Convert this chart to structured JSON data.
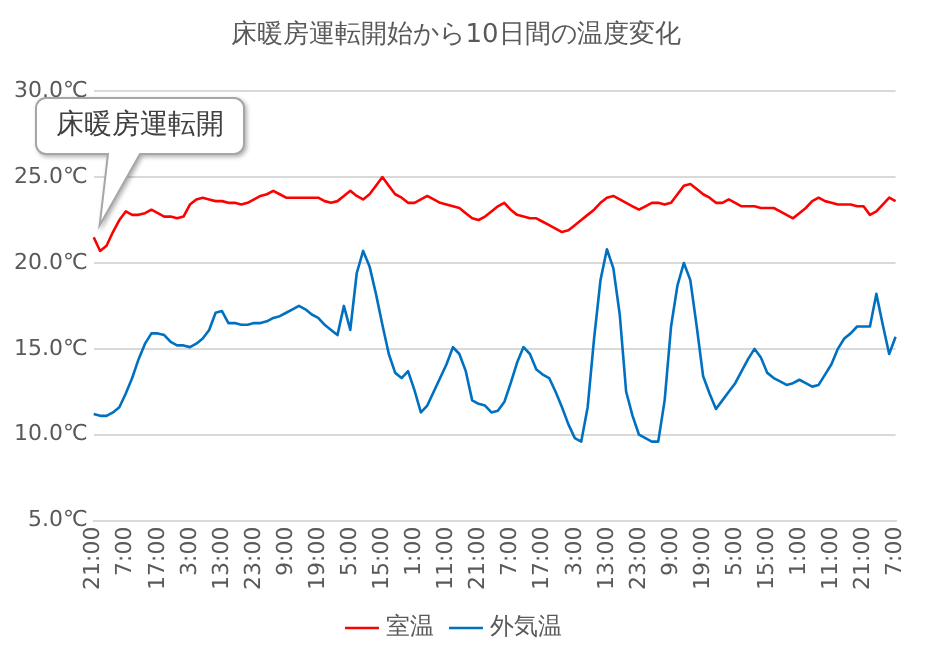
{
  "chart_data": {
    "type": "line",
    "title": "床暖房運転開始から10日間の温度変化",
    "categories": [
      "21:00",
      null,
      null,
      null,
      null,
      "7:00",
      null,
      null,
      null,
      null,
      "17:00",
      null,
      null,
      null,
      null,
      "3:00",
      null,
      null,
      null,
      null,
      "13:00",
      null,
      null,
      null,
      null,
      "23:00",
      null,
      null,
      null,
      null,
      "9:00",
      null,
      null,
      null,
      null,
      "19:00",
      null,
      null,
      null,
      null,
      "5:00",
      null,
      null,
      null,
      null,
      "15:00",
      null,
      null,
      null,
      null,
      "1:00",
      null,
      null,
      null,
      null,
      "11:00",
      null,
      null,
      null,
      null,
      "21:00",
      null,
      null,
      null,
      null,
      "7:00",
      null,
      null,
      null,
      null,
      "17:00",
      null,
      null,
      null,
      null,
      "3:00",
      null,
      null,
      null,
      null,
      "13:00",
      null,
      null,
      null,
      null,
      "23:00",
      null,
      null,
      null,
      null,
      "9:00",
      null,
      null,
      null,
      null,
      "19:00",
      null,
      null,
      null,
      null,
      "5:00",
      null,
      null,
      null,
      null,
      "15:00",
      null,
      null,
      null,
      null,
      "1:00",
      null,
      null,
      null,
      null,
      "11:00",
      null,
      null,
      null,
      null,
      "21:00",
      null,
      null,
      null,
      null,
      "7:00"
    ],
    "ylim": [
      5,
      30
    ],
    "yticks": [
      {
        "value": 5,
        "label": "5.0℃"
      },
      {
        "value": 10,
        "label": "10.0℃"
      },
      {
        "value": 15,
        "label": "15.0℃"
      },
      {
        "value": 20,
        "label": "20.0℃"
      },
      {
        "value": 25,
        "label": "25.0℃"
      },
      {
        "value": 30,
        "label": "30.0℃"
      }
    ],
    "grid": "y",
    "legend": "bottom",
    "marker": "none",
    "line_style": "solid",
    "annotations": [
      "床暖房運転開"
    ],
    "series": [
      {
        "name": "室温",
        "color": "#ff0000",
        "values": [
          21.5,
          20.7,
          21.0,
          21.8,
          22.5,
          23.0,
          22.8,
          22.8,
          22.9,
          23.1,
          22.9,
          22.7,
          22.7,
          22.6,
          22.7,
          23.4,
          23.7,
          23.8,
          23.7,
          23.6,
          23.6,
          23.5,
          23.5,
          23.4,
          23.5,
          23.7,
          23.9,
          24.0,
          24.2,
          24.0,
          23.8,
          23.8,
          23.8,
          23.8,
          23.8,
          23.8,
          23.6,
          23.5,
          23.6,
          23.9,
          24.2,
          23.9,
          23.7,
          24.0,
          24.5,
          25.0,
          24.5,
          24.0,
          23.8,
          23.5,
          23.5,
          23.7,
          23.9,
          23.7,
          23.5,
          23.4,
          23.3,
          23.2,
          22.9,
          22.6,
          22.5,
          22.7,
          23.0,
          23.3,
          23.5,
          23.1,
          22.8,
          22.7,
          22.6,
          22.6,
          22.4,
          22.2,
          22.0,
          21.8,
          21.9,
          22.2,
          22.5,
          22.8,
          23.1,
          23.5,
          23.8,
          23.9,
          23.7,
          23.5,
          23.3,
          23.1,
          23.3,
          23.5,
          23.5,
          23.4,
          23.5,
          24.0,
          24.5,
          24.6,
          24.3,
          24.0,
          23.8,
          23.5,
          23.5,
          23.7,
          23.5,
          23.3,
          23.3,
          23.3,
          23.2,
          23.2,
          23.2,
          23.0,
          22.8,
          22.6,
          22.9,
          23.2,
          23.6,
          23.8,
          23.6,
          23.5,
          23.4,
          23.4,
          23.4,
          23.3,
          23.3,
          22.8,
          23.0,
          23.4,
          23.8,
          23.6
        ]
      },
      {
        "name": "外気温",
        "color": "#0070c0",
        "values": [
          11.2,
          11.1,
          11.1,
          11.3,
          11.6,
          12.4,
          13.3,
          14.4,
          15.3,
          15.9,
          15.9,
          15.8,
          15.4,
          15.2,
          15.2,
          15.1,
          15.3,
          15.6,
          16.1,
          17.1,
          17.2,
          16.5,
          16.5,
          16.4,
          16.4,
          16.5,
          16.5,
          16.6,
          16.8,
          16.9,
          17.1,
          17.3,
          17.5,
          17.3,
          17.0,
          16.8,
          16.4,
          16.1,
          15.8,
          17.5,
          16.1,
          19.4,
          20.7,
          19.8,
          18.2,
          16.4,
          14.7,
          13.6,
          13.3,
          13.7,
          12.6,
          11.3,
          11.7,
          12.5,
          13.3,
          14.1,
          15.1,
          14.7,
          13.7,
          12.0,
          11.8,
          11.7,
          11.3,
          11.4,
          11.9,
          13.0,
          14.2,
          15.1,
          14.7,
          13.8,
          13.5,
          13.3,
          12.5,
          11.6,
          10.6,
          9.8,
          9.6,
          11.6,
          15.6,
          19.0,
          20.8,
          19.7,
          17.0,
          12.5,
          11.1,
          10.0,
          9.8,
          9.6,
          9.6,
          12.0,
          16.3,
          18.7,
          20.0,
          19.0,
          16.3,
          13.4,
          12.4,
          11.5,
          12.0,
          12.5,
          13.0,
          13.7,
          14.4,
          15.0,
          14.5,
          13.6,
          13.3,
          13.1,
          12.9,
          13.0,
          13.2,
          13.0,
          12.8,
          12.9,
          13.5,
          14.1,
          15.0,
          15.6,
          15.9,
          16.3,
          16.3,
          16.3,
          18.2,
          16.4,
          14.7,
          15.7
        ]
      }
    ]
  }
}
